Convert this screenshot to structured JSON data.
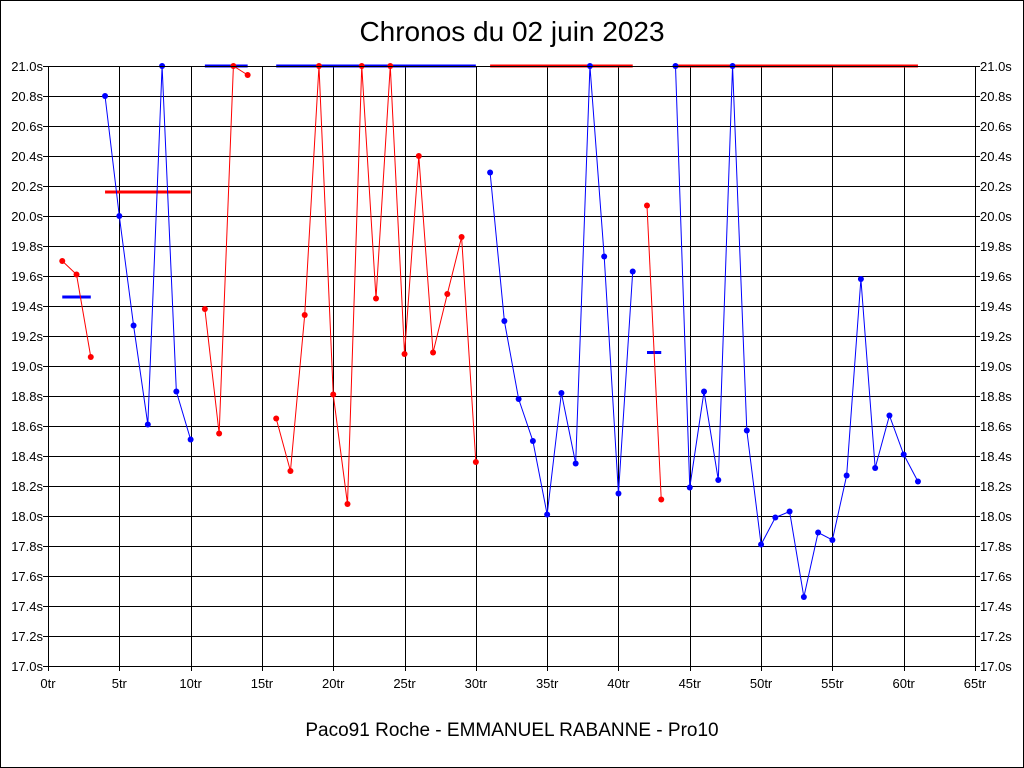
{
  "chart_data": {
    "type": "line",
    "title": "Chronos du 02 juin 2023",
    "footer": "Paco91 Roche - EMMANUEL RABANNE - Pro10",
    "xlim": [
      0,
      65
    ],
    "ylim": [
      17.0,
      21.0
    ],
    "x_ticks": [
      0,
      5,
      10,
      15,
      20,
      25,
      30,
      35,
      40,
      45,
      50,
      55,
      60,
      65
    ],
    "x_tick_labels": [
      "0tr",
      "5tr",
      "10tr",
      "15tr",
      "20tr",
      "25tr",
      "30tr",
      "35tr",
      "40tr",
      "45tr",
      "50tr",
      "55tr",
      "60tr",
      "65tr"
    ],
    "y_ticks": [
      17.0,
      17.2,
      17.4,
      17.6,
      17.8,
      18.0,
      18.2,
      18.4,
      18.6,
      18.8,
      19.0,
      19.2,
      19.4,
      19.6,
      19.8,
      20.0,
      20.2,
      20.4,
      20.6,
      20.8,
      21.0
    ],
    "y_tick_labels": [
      "17.0s",
      "17.2s",
      "17.4s",
      "17.6s",
      "17.8s",
      "18.0s",
      "18.2s",
      "18.4s",
      "18.6s",
      "18.8s",
      "19.0s",
      "19.2s",
      "19.4s",
      "19.6s",
      "19.8s",
      "20.0s",
      "20.2s",
      "20.4s",
      "20.6s",
      "20.8s",
      "21.0s"
    ],
    "grid": true,
    "colors": {
      "red": "#ff0000",
      "blue": "#0000ff"
    },
    "series": [
      {
        "color": "red",
        "x": [
          1,
          2,
          3
        ],
        "y": [
          19.7,
          19.61,
          19.06
        ]
      },
      {
        "color": "blue",
        "x": [
          4,
          5,
          6,
          7,
          8,
          9,
          10
        ],
        "y": [
          20.8,
          20.0,
          19.27,
          18.61,
          21.0,
          18.83,
          18.51
        ]
      },
      {
        "color": "red",
        "x": [
          11,
          12,
          13,
          14
        ],
        "y": [
          19.38,
          18.55,
          21.0,
          20.94
        ]
      },
      {
        "color": "red",
        "x": [
          16,
          17,
          18,
          19,
          20,
          21,
          22,
          23,
          24,
          25,
          26,
          27,
          28,
          29,
          30
        ],
        "y": [
          18.65,
          18.3,
          19.34,
          21.0,
          18.81,
          18.08,
          21.0,
          19.45,
          21.0,
          19.08,
          20.4,
          19.09,
          19.48,
          19.86,
          18.36
        ]
      },
      {
        "color": "blue",
        "x": [
          31,
          32,
          33,
          34,
          35,
          36,
          37,
          38,
          39,
          40,
          41
        ],
        "y": [
          20.29,
          19.3,
          18.78,
          18.5,
          18.01,
          18.82,
          18.35,
          21.0,
          19.73,
          18.15,
          19.63
        ]
      },
      {
        "color": "red",
        "x": [
          42,
          43
        ],
        "y": [
          20.07,
          18.11
        ]
      },
      {
        "color": "blue",
        "x": [
          44,
          45,
          46,
          47,
          48,
          49,
          50,
          51,
          52,
          53,
          54,
          55,
          56,
          57,
          58,
          59,
          60,
          61
        ],
        "y": [
          21.0,
          18.19,
          18.83,
          18.24,
          21.0,
          18.57,
          17.81,
          17.99,
          18.03,
          17.46,
          17.89,
          17.84,
          18.27,
          19.58,
          18.32,
          18.67,
          18.41,
          18.23
        ]
      }
    ],
    "averages": [
      {
        "color": "blue",
        "x0": 1,
        "x1": 3,
        "y": 19.46
      },
      {
        "color": "red",
        "x0": 4,
        "x1": 10,
        "y": 20.16
      },
      {
        "color": "blue",
        "x0": 11,
        "x1": 14,
        "y": 21.0
      },
      {
        "color": "blue",
        "x0": 16,
        "x1": 30,
        "y": 21.0
      },
      {
        "color": "red",
        "x0": 31,
        "x1": 41,
        "y": 21.0
      },
      {
        "color": "blue",
        "x0": 42,
        "x1": 43,
        "y": 19.09
      },
      {
        "color": "red",
        "x0": 44,
        "x1": 61,
        "y": 21.0
      }
    ]
  }
}
